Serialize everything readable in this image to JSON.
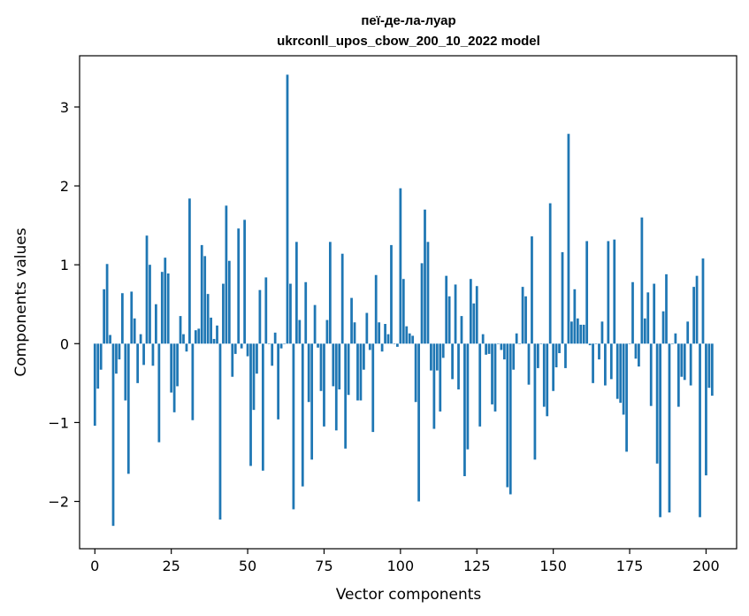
{
  "chart_data": {
    "type": "bar",
    "title": "пеї-де-ла-луар",
    "subtitle": "ukrconll_upos_cbow_200_10_2022 model",
    "xlabel": "Vector components",
    "ylabel": "Components values",
    "xlim": [
      -5,
      210
    ],
    "ylim": [
      -2.6,
      3.65
    ],
    "x_ticks": [
      0,
      25,
      50,
      75,
      100,
      125,
      150,
      175,
      200
    ],
    "y_ticks": [
      -2,
      -1,
      0,
      1,
      2,
      3
    ],
    "y_tick_labels": [
      "−2",
      "−1",
      "0",
      "1",
      "2",
      "3"
    ],
    "grid": false,
    "color": "#1f77b4",
    "values": [
      -1.04,
      -0.57,
      -0.33,
      0.69,
      1.01,
      0.11,
      -2.31,
      -0.38,
      -0.2,
      0.64,
      -0.72,
      -1.65,
      0.66,
      0.32,
      -0.5,
      0.12,
      -0.27,
      1.37,
      1.0,
      -0.28,
      0.5,
      -1.25,
      0.91,
      1.09,
      0.89,
      -0.62,
      -0.87,
      -0.54,
      0.35,
      0.12,
      -0.1,
      1.84,
      -0.97,
      0.17,
      0.19,
      1.25,
      1.11,
      0.63,
      0.33,
      0.06,
      0.23,
      -2.23,
      0.76,
      1.75,
      1.05,
      -0.42,
      -0.13,
      1.46,
      -0.06,
      1.57,
      -0.16,
      -1.55,
      -0.84,
      -0.38,
      0.68,
      -1.61,
      0.84,
      0.0,
      -0.28,
      0.14,
      -0.96,
      -0.06,
      0.0,
      3.41,
      0.76,
      -2.1,
      1.29,
      0.3,
      -1.81,
      0.78,
      -0.74,
      -1.47,
      0.49,
      -0.05,
      -0.6,
      -1.05,
      0.3,
      1.29,
      -0.54,
      -1.1,
      -0.58,
      1.14,
      -1.33,
      -0.65,
      0.58,
      0.27,
      -0.72,
      -0.72,
      -0.33,
      0.39,
      -0.08,
      -1.12,
      0.87,
      0.27,
      -0.1,
      0.25,
      0.12,
      1.25,
      0.0,
      -0.04,
      1.97,
      0.82,
      0.22,
      0.13,
      0.1,
      -0.74,
      -2.0,
      1.02,
      1.7,
      1.29,
      -0.34,
      -1.08,
      -0.34,
      -0.86,
      -0.18,
      0.86,
      0.6,
      -0.45,
      0.75,
      -0.58,
      0.35,
      -1.68,
      -1.34,
      0.82,
      0.51,
      0.73,
      -1.05,
      0.12,
      -0.14,
      -0.13,
      -0.77,
      -0.86,
      0.0,
      -0.08,
      -0.2,
      -1.82,
      -1.91,
      -0.33,
      0.13,
      0.0,
      0.72,
      0.6,
      -0.52,
      1.36,
      -1.47,
      -0.31,
      0.0,
      -0.8,
      -0.92,
      1.78,
      -0.6,
      -0.3,
      -0.12,
      1.16,
      -0.31,
      2.66,
      0.28,
      0.69,
      0.32,
      0.24,
      0.24,
      1.3,
      -0.02,
      -0.5,
      0.0,
      -0.2,
      0.28,
      -0.53,
      1.3,
      -0.45,
      1.32,
      -0.7,
      -0.75,
      -0.9,
      -1.37,
      0.0,
      0.78,
      -0.19,
      -0.29,
      1.6,
      0.32,
      0.65,
      -0.79,
      0.76,
      -1.52,
      -2.2,
      0.41,
      0.88,
      -2.14,
      0.0,
      0.13,
      -0.8,
      -0.42,
      -0.46,
      0.28,
      -0.53,
      0.72,
      0.86,
      -2.2,
      1.08,
      -1.67,
      -0.56,
      -0.66
    ]
  }
}
